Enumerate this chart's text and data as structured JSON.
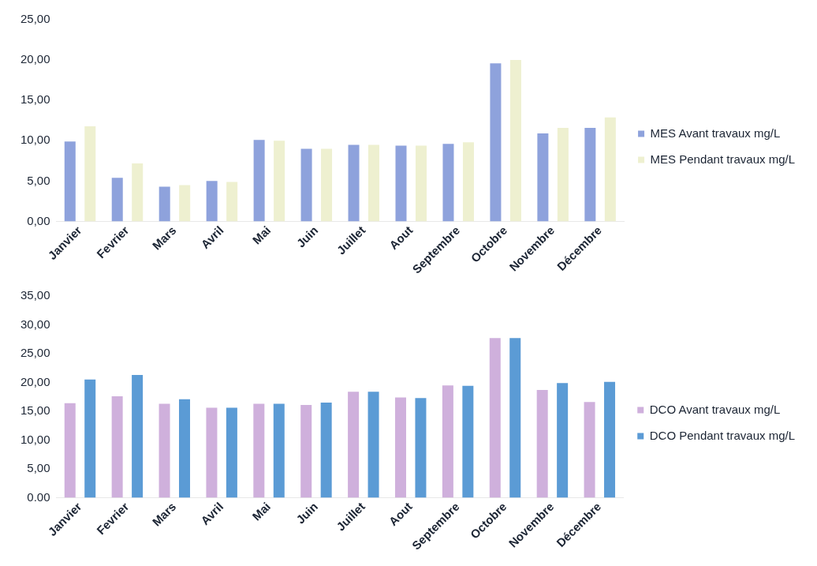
{
  "chart_data": [
    {
      "type": "bar",
      "categories": [
        "Janvier",
        "Fevrier",
        "Mars",
        "Avril",
        "Mai",
        "Juin",
        "Juillet",
        "Aout",
        "Septembre",
        "Octobre",
        "Novembre",
        "Décembre"
      ],
      "series": [
        {
          "name": "MES Avant travaux mg/L",
          "color": "#8ea2dc",
          "values": [
            9.9,
            5.4,
            4.3,
            5.0,
            10.1,
            9.0,
            9.5,
            9.4,
            9.6,
            19.6,
            10.9,
            11.6
          ]
        },
        {
          "name": "MES Pendant travaux mg/L",
          "color": "#eef0d0",
          "values": [
            11.8,
            7.2,
            4.5,
            4.9,
            10.0,
            9.0,
            9.5,
            9.4,
            9.8,
            20.0,
            11.6,
            12.9
          ]
        }
      ],
      "ylim": [
        0,
        25
      ],
      "yticks": [
        {
          "value": 0,
          "label": "0,00"
        },
        {
          "value": 5,
          "label": "5,00"
        },
        {
          "value": 10,
          "label": "10,00"
        },
        {
          "value": 15,
          "label": "15,00"
        },
        {
          "value": 20,
          "label": "20,00"
        },
        {
          "value": 25,
          "label": "25,00"
        }
      ],
      "grid": false,
      "legend": "right"
    },
    {
      "type": "bar",
      "categories": [
        "Janvier",
        "Fevrier",
        "Mars",
        "Avril",
        "Mai",
        "Juin",
        "Juillet",
        "Aout",
        "Septembre",
        "Octobre",
        "Novembre",
        "Décembre"
      ],
      "series": [
        {
          "name": "DCO Avant travaux mg/L",
          "color": "#cfb0dc",
          "values": [
            16.4,
            17.6,
            16.3,
            15.6,
            16.3,
            16.1,
            18.4,
            17.4,
            19.5,
            27.7,
            18.7,
            16.6
          ]
        },
        {
          "name": "DCO Pendant travaux mg/L",
          "color": "#5b9bd5",
          "values": [
            20.5,
            21.3,
            17.1,
            15.6,
            16.3,
            16.5,
            18.4,
            17.3,
            19.4,
            27.7,
            19.9,
            20.1
          ]
        }
      ],
      "ylim": [
        0,
        35
      ],
      "yticks": [
        {
          "value": 0,
          "label": "0.00"
        },
        {
          "value": 5,
          "label": "5,00"
        },
        {
          "value": 10,
          "label": "10,00"
        },
        {
          "value": 15,
          "label": "15,00"
        },
        {
          "value": 20,
          "label": "20,00"
        },
        {
          "value": 25,
          "label": "25,00"
        },
        {
          "value": 30,
          "label": "30,00"
        },
        {
          "value": 35,
          "label": "35,00"
        }
      ],
      "grid": false,
      "legend": "right"
    }
  ]
}
